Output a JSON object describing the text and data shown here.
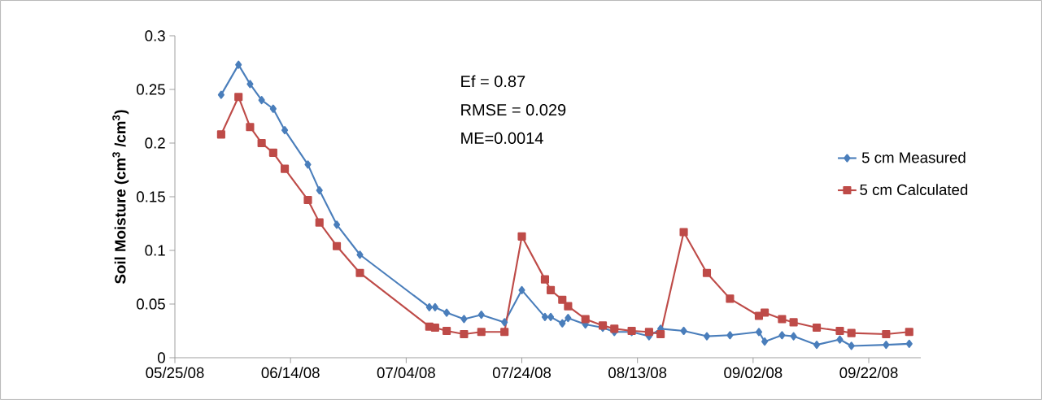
{
  "chart_data": {
    "type": "line",
    "ylabel": "Soil Moisture (cm$^{3}$ /cm$^{3}$)",
    "x": [
      "2008-06-02",
      "2008-06-05",
      "2008-06-07",
      "2008-06-09",
      "2008-06-11",
      "2008-06-13",
      "2008-06-17",
      "2008-06-19",
      "2008-06-22",
      "2008-06-26",
      "2008-07-08",
      "2008-07-09",
      "2008-07-11",
      "2008-07-14",
      "2008-07-17",
      "2008-07-21",
      "2008-07-24",
      "2008-07-28",
      "2008-07-29",
      "2008-07-31",
      "2008-08-01",
      "2008-08-04",
      "2008-08-07",
      "2008-08-09",
      "2008-08-12",
      "2008-08-15",
      "2008-08-17",
      "2008-08-21",
      "2008-08-25",
      "2008-08-29",
      "2008-09-03",
      "2008-09-04",
      "2008-09-07",
      "2008-09-09",
      "2008-09-13",
      "2008-09-17",
      "2008-09-19",
      "2008-09-25",
      "2008-09-29"
    ],
    "series": [
      {
        "name": "5 cm Measured",
        "color": "#4a7ebb",
        "marker": "diamond",
        "values": [
          0.245,
          0.273,
          0.255,
          0.24,
          0.232,
          0.212,
          0.18,
          0.156,
          0.124,
          0.096,
          0.047,
          0.047,
          0.042,
          0.036,
          0.04,
          0.033,
          0.063,
          0.038,
          0.038,
          0.032,
          0.037,
          0.031,
          0.028,
          0.024,
          0.024,
          0.02,
          0.027,
          0.025,
          0.02,
          0.021,
          0.024,
          0.015,
          0.021,
          0.02,
          0.012,
          0.017,
          0.011,
          0.012,
          0.013
        ]
      },
      {
        "name": "5 cm Calculated",
        "color": "#be4b48",
        "marker": "square",
        "values": [
          0.208,
          0.243,
          0.215,
          0.2,
          0.191,
          0.176,
          0.147,
          0.126,
          0.104,
          0.079,
          0.029,
          0.028,
          0.025,
          0.022,
          0.024,
          0.024,
          0.113,
          0.073,
          0.063,
          0.054,
          0.048,
          0.036,
          0.03,
          0.027,
          0.025,
          0.024,
          0.022,
          0.117,
          0.079,
          0.055,
          0.039,
          0.042,
          0.036,
          0.033,
          0.028,
          0.025,
          0.023,
          0.022,
          0.024
        ]
      }
    ],
    "xlim": [
      "2008-05-25",
      "2008-10-01"
    ],
    "xticks": [
      {
        "value": "2008-05-25",
        "label": "05/25/08"
      },
      {
        "value": "2008-06-14",
        "label": "06/14/08"
      },
      {
        "value": "2008-07-04",
        "label": "07/04/08"
      },
      {
        "value": "2008-07-24",
        "label": "07/24/08"
      },
      {
        "value": "2008-08-13",
        "label": "08/13/08"
      },
      {
        "value": "2008-09-02",
        "label": "09/02/08"
      },
      {
        "value": "2008-09-22",
        "label": "09/22/08"
      }
    ],
    "ylim": [
      0,
      0.3
    ],
    "yticks": [
      0,
      0.05,
      0.1,
      0.15,
      0.2,
      0.25,
      0.3
    ],
    "annotations": [
      "Ef = 0.87",
      "RMSE = 0.029",
      "ME=0.0014"
    ],
    "legend": "right",
    "grid": false,
    "line_style": "solid"
  }
}
